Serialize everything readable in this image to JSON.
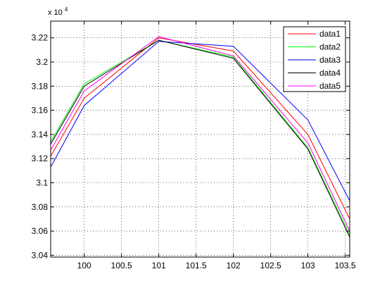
{
  "chart_data": {
    "type": "line",
    "title": "",
    "xlabel": "",
    "ylabel": "",
    "y_multiplier_label": "x 10",
    "y_multiplier_exponent": "4",
    "xlim": [
      99.55,
      103.56
    ],
    "ylim": [
      3.0385,
      3.2338
    ],
    "xticks": [
      100,
      100.5,
      101,
      101.5,
      102,
      102.5,
      103,
      103.5
    ],
    "xtick_labels": [
      "100",
      "100.5",
      "101",
      "101.5",
      "102",
      "102.5",
      "103",
      "103.5"
    ],
    "yticks": [
      3.04,
      3.06,
      3.08,
      3.1,
      3.12,
      3.14,
      3.16,
      3.18,
      3.2,
      3.22
    ],
    "ytick_labels": [
      "3.04",
      "3.06",
      "3.08",
      "3.1",
      "3.12",
      "3.14",
      "3.16",
      "3.18",
      "3.2",
      "3.22"
    ],
    "grid": true,
    "grid_style": "dotted",
    "legend_position": "top-right",
    "x": [
      99.55,
      100,
      101,
      102,
      103,
      103.56
    ],
    "series": [
      {
        "name": "data1",
        "color": "#ff0000",
        "values": [
          3.122,
          3.17,
          3.22,
          3.209,
          3.14,
          3.07
        ]
      },
      {
        "name": "data2",
        "color": "#00ff00",
        "values": [
          3.134,
          3.182,
          3.218,
          3.204,
          3.129,
          3.057
        ]
      },
      {
        "name": "data3",
        "color": "#0000ff",
        "values": [
          3.113,
          3.164,
          3.217,
          3.213,
          3.152,
          3.085
        ]
      },
      {
        "name": "data4",
        "color": "#000000",
        "values": [
          3.132,
          3.18,
          3.218,
          3.203,
          3.128,
          3.055
        ]
      },
      {
        "name": "data5",
        "color": "#ff00ff",
        "values": [
          3.127,
          3.176,
          3.221,
          3.205,
          3.133,
          3.06
        ]
      }
    ]
  }
}
